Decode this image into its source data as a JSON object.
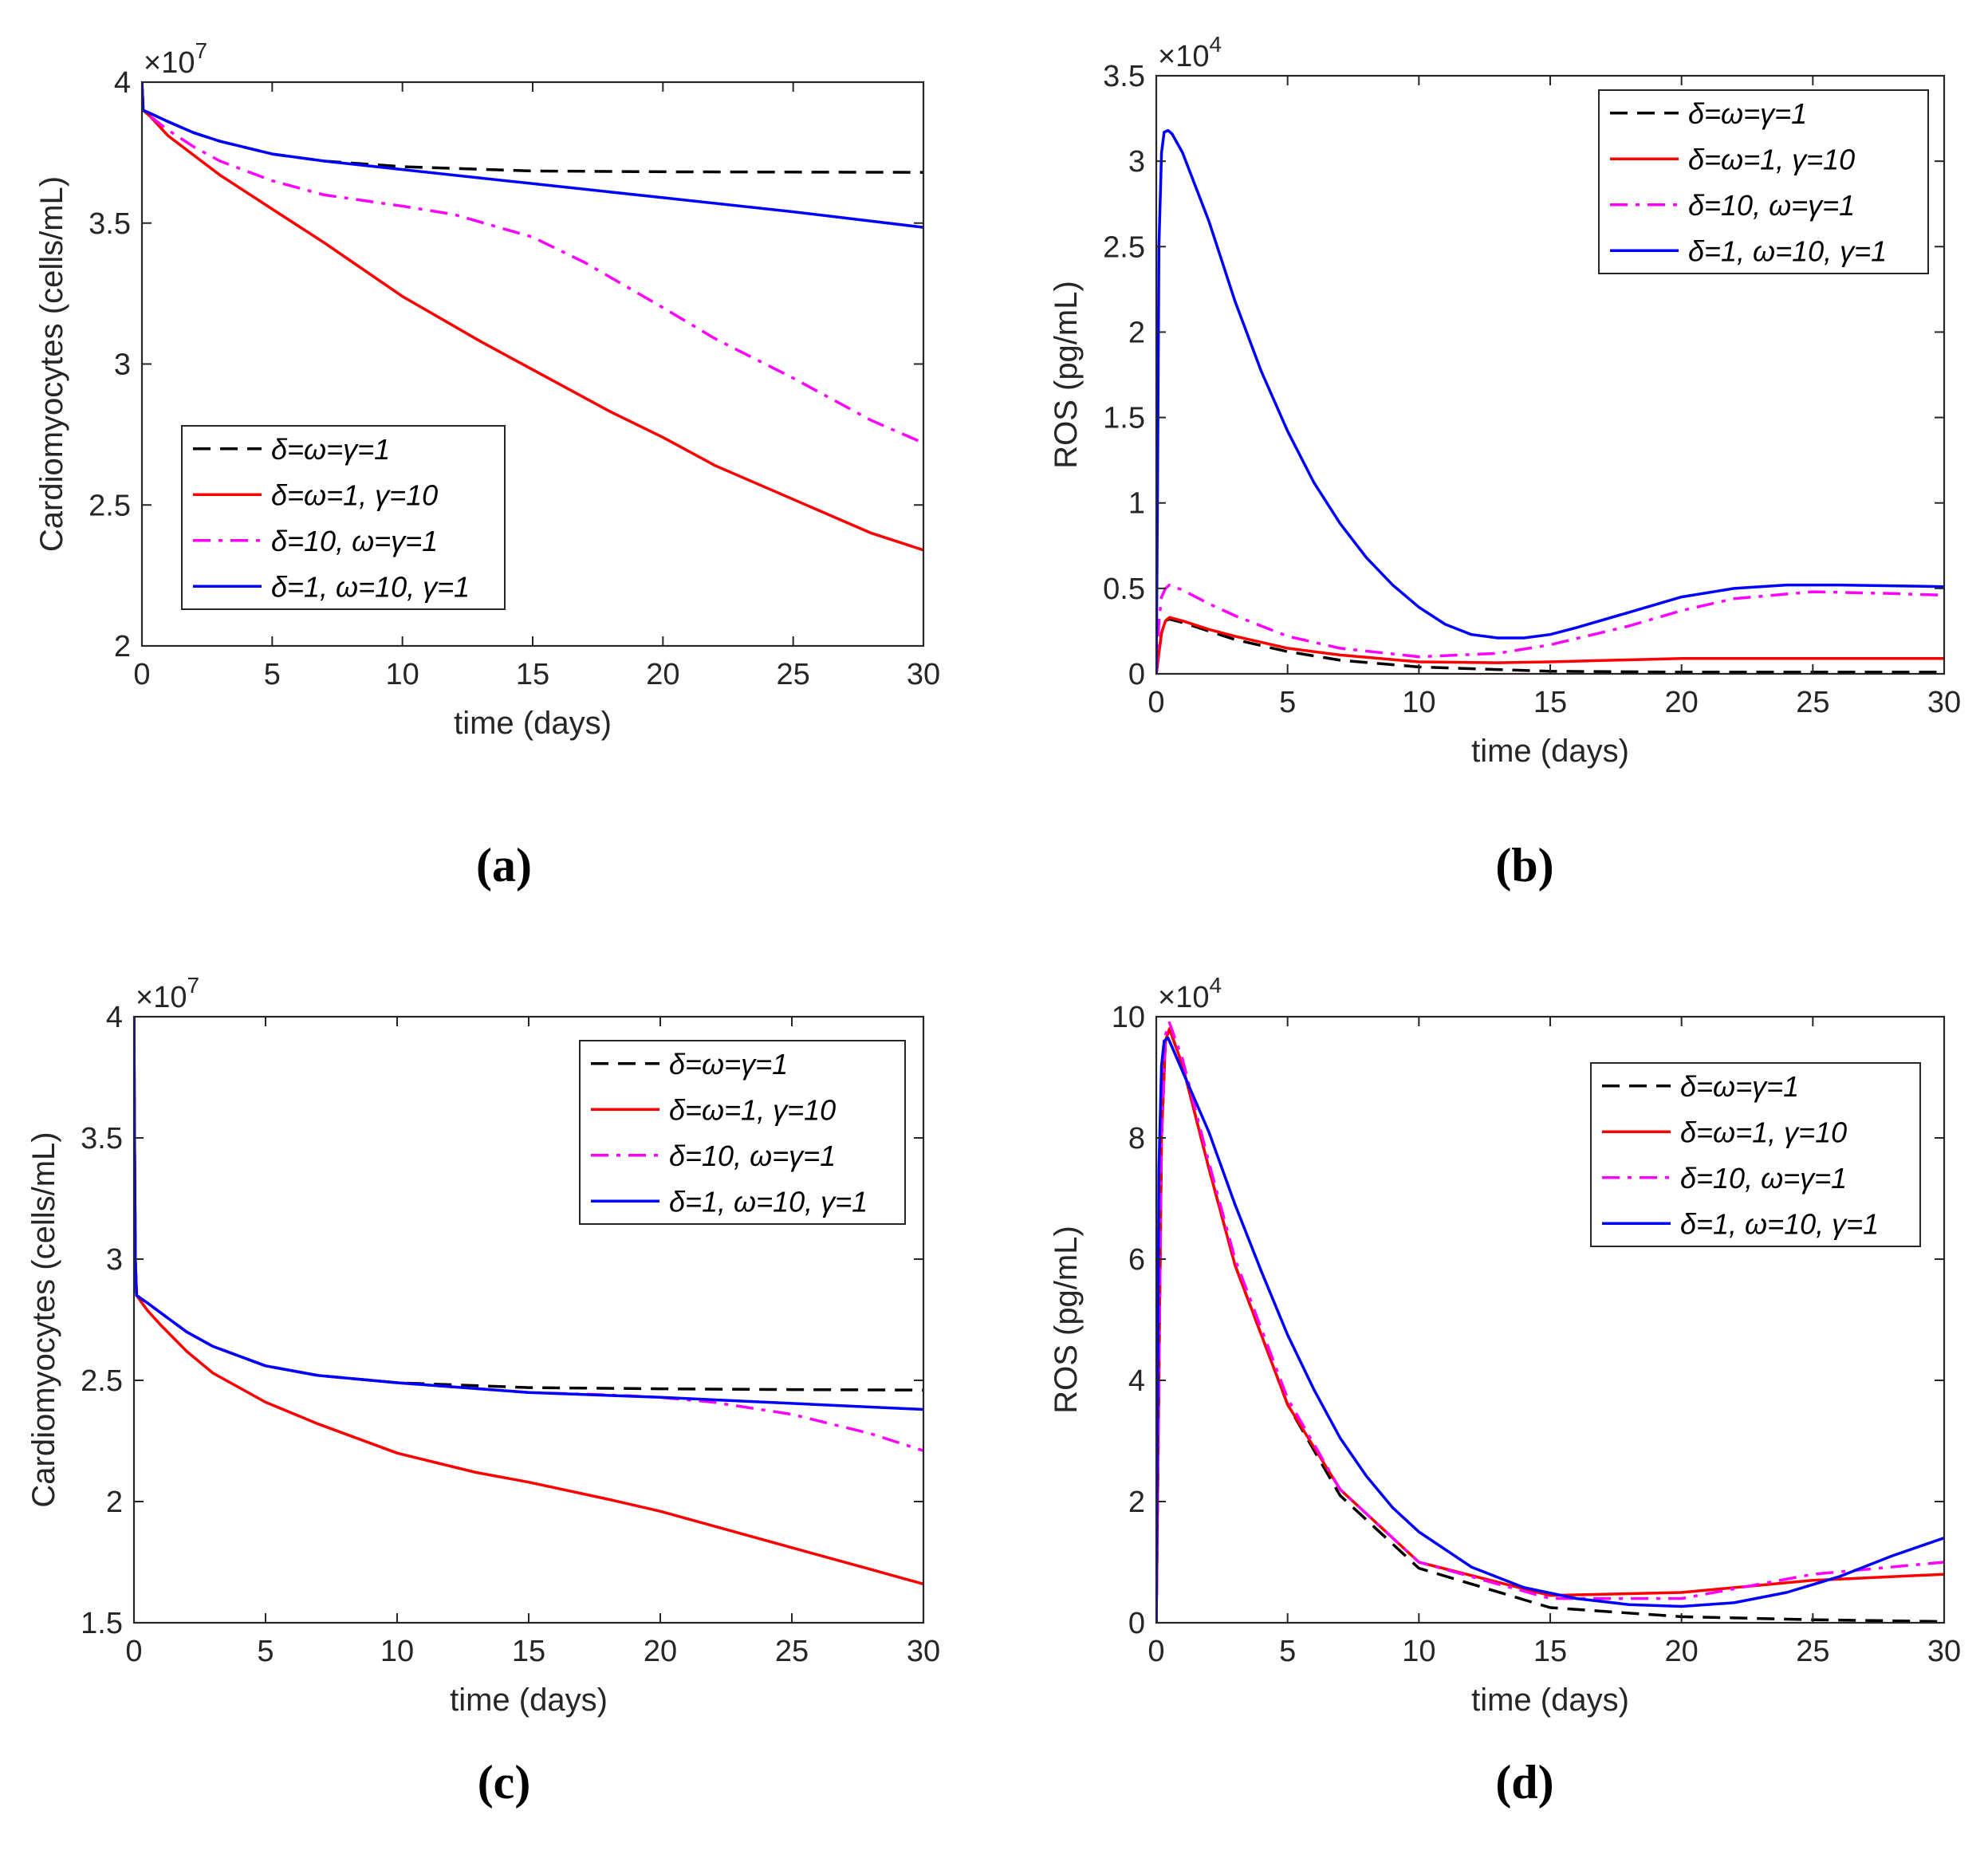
{
  "figure": {
    "panels": [
      "a",
      "b",
      "c",
      "d"
    ]
  },
  "chart_data": [
    {
      "id": "a",
      "panel_label": "(a)",
      "type": "line",
      "xlabel": "time (days)",
      "ylabel": "Cardiomyocytes (cells/mL)",
      "exponent_base": "×10",
      "exponent_power": "7",
      "xlim": [
        0,
        30
      ],
      "ylim": [
        2,
        4
      ],
      "xticks": [
        0,
        5,
        10,
        15,
        20,
        25,
        30
      ],
      "yticks": [
        2,
        2.5,
        3,
        3.5,
        4
      ],
      "ytick_labels": [
        "2",
        "2.5",
        "3",
        "3.5",
        "4"
      ],
      "legend_position": "lower-left",
      "series": [
        {
          "name": "δ=ω=γ=1",
          "color": "#000000",
          "style": "dashed",
          "x": [
            0,
            0.05,
            0.3,
            1,
            2,
            3,
            5,
            7,
            10,
            15,
            20,
            25,
            30
          ],
          "y": [
            4.0,
            3.9,
            3.89,
            3.86,
            3.82,
            3.79,
            3.745,
            3.72,
            3.7,
            3.685,
            3.682,
            3.681,
            3.68
          ]
        },
        {
          "name": "δ=ω=1, γ=10",
          "color": "#ff0000",
          "style": "solid",
          "x": [
            0,
            0.05,
            0.3,
            1,
            2,
            3,
            5,
            7,
            10,
            13,
            15,
            18,
            20,
            22,
            25,
            28,
            30
          ],
          "y": [
            4.0,
            3.9,
            3.88,
            3.81,
            3.74,
            3.67,
            3.55,
            3.43,
            3.24,
            3.08,
            2.98,
            2.83,
            2.74,
            2.64,
            2.52,
            2.4,
            2.34
          ]
        },
        {
          "name": "δ=10, ω=γ=1",
          "color": "#ff00ff",
          "style": "dashdot",
          "x": [
            0,
            0.05,
            0.3,
            1,
            2,
            3,
            5,
            7,
            10,
            12,
            15,
            17,
            20,
            22,
            25,
            28,
            30
          ],
          "y": [
            4.0,
            3.9,
            3.88,
            3.83,
            3.77,
            3.72,
            3.65,
            3.6,
            3.56,
            3.53,
            3.45,
            3.36,
            3.2,
            3.09,
            2.95,
            2.8,
            2.72
          ]
        },
        {
          "name": "δ=1, ω=10, γ=1",
          "color": "#0000ff",
          "style": "solid",
          "x": [
            0,
            0.05,
            0.3,
            1,
            2,
            3,
            5,
            7,
            10,
            15,
            20,
            25,
            30
          ],
          "y": [
            4.0,
            3.9,
            3.89,
            3.86,
            3.82,
            3.79,
            3.745,
            3.72,
            3.69,
            3.64,
            3.59,
            3.54,
            3.485
          ]
        }
      ]
    },
    {
      "id": "b",
      "panel_label": "(b)",
      "type": "line",
      "xlabel": "time (days)",
      "ylabel": "ROS (pg/mL)",
      "exponent_base": "×10",
      "exponent_power": "4",
      "xlim": [
        0,
        30
      ],
      "ylim": [
        0,
        3.5
      ],
      "xticks": [
        0,
        5,
        10,
        15,
        20,
        25,
        30
      ],
      "yticks": [
        0,
        0.5,
        1,
        1.5,
        2,
        2.5,
        3,
        3.5
      ],
      "ytick_labels": [
        "0",
        "0.5",
        "1",
        "1.5",
        "2",
        "2.5",
        "3",
        "3.5"
      ],
      "legend_position": "top-right",
      "series": [
        {
          "name": "δ=ω=γ=1",
          "color": "#000000",
          "style": "dashed",
          "x": [
            0,
            0.1,
            0.2,
            0.35,
            0.5,
            1,
            2,
            3,
            5,
            7,
            10,
            15,
            20,
            25,
            30
          ],
          "y": [
            0,
            0.12,
            0.24,
            0.31,
            0.32,
            0.3,
            0.25,
            0.2,
            0.13,
            0.08,
            0.04,
            0.015,
            0.01,
            0.01,
            0.01
          ]
        },
        {
          "name": "δ=ω=1, γ=10",
          "color": "#ff0000",
          "style": "solid",
          "x": [
            0,
            0.1,
            0.2,
            0.35,
            0.5,
            1,
            2,
            3,
            5,
            7,
            10,
            13,
            15,
            20,
            25,
            30
          ],
          "y": [
            0,
            0.12,
            0.24,
            0.31,
            0.33,
            0.31,
            0.26,
            0.22,
            0.15,
            0.11,
            0.07,
            0.065,
            0.07,
            0.09,
            0.09,
            0.09
          ]
        },
        {
          "name": "δ=10, ω=γ=1",
          "color": "#ff00ff",
          "style": "dashdot",
          "x": [
            0,
            0.1,
            0.2,
            0.35,
            0.5,
            1,
            2,
            3,
            5,
            7,
            10,
            13,
            15,
            18,
            20,
            22,
            25,
            28,
            30
          ],
          "y": [
            0,
            0.3,
            0.45,
            0.5,
            0.52,
            0.49,
            0.41,
            0.34,
            0.22,
            0.15,
            0.1,
            0.12,
            0.17,
            0.28,
            0.37,
            0.44,
            0.48,
            0.47,
            0.46
          ]
        },
        {
          "name": "δ=1, ω=10, γ=1",
          "color": "#0000ff",
          "style": "solid",
          "x": [
            0,
            0.05,
            0.1,
            0.2,
            0.3,
            0.45,
            0.6,
            1,
            2,
            3,
            4,
            5,
            6,
            7,
            8,
            9,
            10,
            11,
            12,
            13,
            14,
            15,
            16,
            18,
            20,
            22,
            24,
            26,
            28,
            30
          ],
          "y": [
            0,
            1.1,
            2.5,
            3.05,
            3.17,
            3.18,
            3.16,
            3.05,
            2.65,
            2.18,
            1.77,
            1.42,
            1.12,
            0.88,
            0.68,
            0.52,
            0.39,
            0.29,
            0.23,
            0.21,
            0.21,
            0.23,
            0.27,
            0.36,
            0.45,
            0.5,
            0.52,
            0.52,
            0.515,
            0.51
          ]
        }
      ]
    },
    {
      "id": "c",
      "panel_label": "(c)",
      "type": "line",
      "xlabel": "time (days)",
      "ylabel": "Cardiomyocytes (cells/mL)",
      "exponent_base": "×10",
      "exponent_power": "7",
      "xlim": [
        0,
        30
      ],
      "ylim": [
        1.5,
        4
      ],
      "xticks": [
        0,
        5,
        10,
        15,
        20,
        25,
        30
      ],
      "yticks": [
        1.5,
        2,
        2.5,
        3,
        3.5,
        4
      ],
      "ytick_labels": [
        "1.5",
        "2",
        "2.5",
        "3",
        "3.5",
        "4"
      ],
      "legend_position": "top-right",
      "series": [
        {
          "name": "δ=ω=γ=1",
          "color": "#000000",
          "style": "dashed",
          "x": [
            0,
            0.02,
            0.05,
            0.1,
            0.5,
            1,
            2,
            3,
            5,
            7,
            10,
            15,
            20,
            25,
            30
          ],
          "y": [
            4.0,
            3.5,
            3.0,
            2.85,
            2.82,
            2.78,
            2.7,
            2.64,
            2.56,
            2.52,
            2.49,
            2.47,
            2.465,
            2.462,
            2.46
          ]
        },
        {
          "name": "δ=ω=1, γ=10",
          "color": "#ff0000",
          "style": "solid",
          "x": [
            0,
            0.02,
            0.05,
            0.1,
            0.5,
            1,
            2,
            3,
            5,
            7,
            10,
            13,
            15,
            18,
            20,
            22,
            25,
            28,
            30
          ],
          "y": [
            4.0,
            3.5,
            3.0,
            2.85,
            2.79,
            2.73,
            2.62,
            2.53,
            2.41,
            2.32,
            2.2,
            2.12,
            2.08,
            2.01,
            1.96,
            1.9,
            1.81,
            1.72,
            1.66
          ]
        },
        {
          "name": "δ=10, ω=γ=1",
          "color": "#ff00ff",
          "style": "dashdot",
          "x": [
            0,
            0.02,
            0.05,
            0.1,
            0.5,
            1,
            2,
            3,
            5,
            7,
            10,
            15,
            18,
            20,
            22,
            25,
            28,
            30
          ],
          "y": [
            4.0,
            3.5,
            3.0,
            2.85,
            2.82,
            2.78,
            2.7,
            2.64,
            2.56,
            2.52,
            2.49,
            2.45,
            2.44,
            2.43,
            2.41,
            2.36,
            2.28,
            2.21
          ]
        },
        {
          "name": "δ=1, ω=10, γ=1",
          "color": "#0000ff",
          "style": "solid",
          "x": [
            0,
            0.02,
            0.05,
            0.1,
            0.5,
            1,
            2,
            3,
            5,
            7,
            10,
            15,
            20,
            25,
            30
          ],
          "y": [
            4.0,
            3.5,
            3.0,
            2.85,
            2.82,
            2.78,
            2.7,
            2.64,
            2.56,
            2.52,
            2.49,
            2.45,
            2.43,
            2.405,
            2.38
          ]
        }
      ]
    },
    {
      "id": "d",
      "panel_label": "(d)",
      "type": "line",
      "xlabel": "time (days)",
      "ylabel": "ROS (pg/mL)",
      "exponent_base": "×10",
      "exponent_power": "4",
      "xlim": [
        0,
        30
      ],
      "ylim": [
        0,
        10
      ],
      "xticks": [
        0,
        5,
        10,
        15,
        20,
        25,
        30
      ],
      "yticks": [
        0,
        2,
        4,
        6,
        8,
        10
      ],
      "ytick_labels": [
        "0",
        "2",
        "4",
        "6",
        "8",
        "10"
      ],
      "legend_position": "top-right",
      "series": [
        {
          "name": "δ=ω=γ=1",
          "color": "#000000",
          "style": "dashed",
          "x": [
            0,
            0.1,
            0.2,
            0.35,
            0.5,
            1,
            2,
            3,
            5,
            7,
            10,
            15,
            20,
            25,
            30
          ],
          "y": [
            0,
            4.0,
            8.0,
            9.6,
            9.8,
            9.2,
            7.5,
            5.9,
            3.6,
            2.1,
            0.9,
            0.25,
            0.1,
            0.05,
            0.02
          ]
        },
        {
          "name": "δ=ω=1, γ=10",
          "color": "#ff0000",
          "style": "solid",
          "x": [
            0,
            0.1,
            0.2,
            0.35,
            0.5,
            1,
            2,
            3,
            5,
            7,
            10,
            15,
            20,
            25,
            30
          ],
          "y": [
            0,
            4.0,
            8.0,
            9.6,
            9.8,
            9.2,
            7.5,
            5.9,
            3.6,
            2.2,
            1.0,
            0.45,
            0.5,
            0.7,
            0.8
          ]
        },
        {
          "name": "δ=10, ω=γ=1",
          "color": "#ff00ff",
          "style": "dashdot",
          "x": [
            0,
            0.1,
            0.2,
            0.35,
            0.5,
            1,
            2,
            3,
            5,
            7,
            10,
            15,
            20,
            25,
            30
          ],
          "y": [
            0,
            4.0,
            8.0,
            9.7,
            9.9,
            9.3,
            7.6,
            6.0,
            3.7,
            2.2,
            1.0,
            0.4,
            0.4,
            0.8,
            1.0
          ]
        },
        {
          "name": "δ=1, ω=10, γ=1",
          "color": "#0000ff",
          "style": "solid",
          "x": [
            0,
            0.05,
            0.1,
            0.2,
            0.3,
            0.45,
            0.6,
            1,
            2,
            3,
            4,
            5,
            6,
            7,
            8,
            9,
            10,
            12,
            14,
            16,
            18,
            20,
            22,
            24,
            26,
            28,
            30
          ],
          "y": [
            0,
            3.5,
            7.5,
            9.2,
            9.6,
            9.65,
            9.5,
            9.1,
            8.1,
            6.9,
            5.8,
            4.75,
            3.85,
            3.05,
            2.42,
            1.9,
            1.5,
            0.92,
            0.58,
            0.4,
            0.3,
            0.27,
            0.33,
            0.5,
            0.76,
            1.1,
            1.4
          ]
        }
      ]
    }
  ]
}
